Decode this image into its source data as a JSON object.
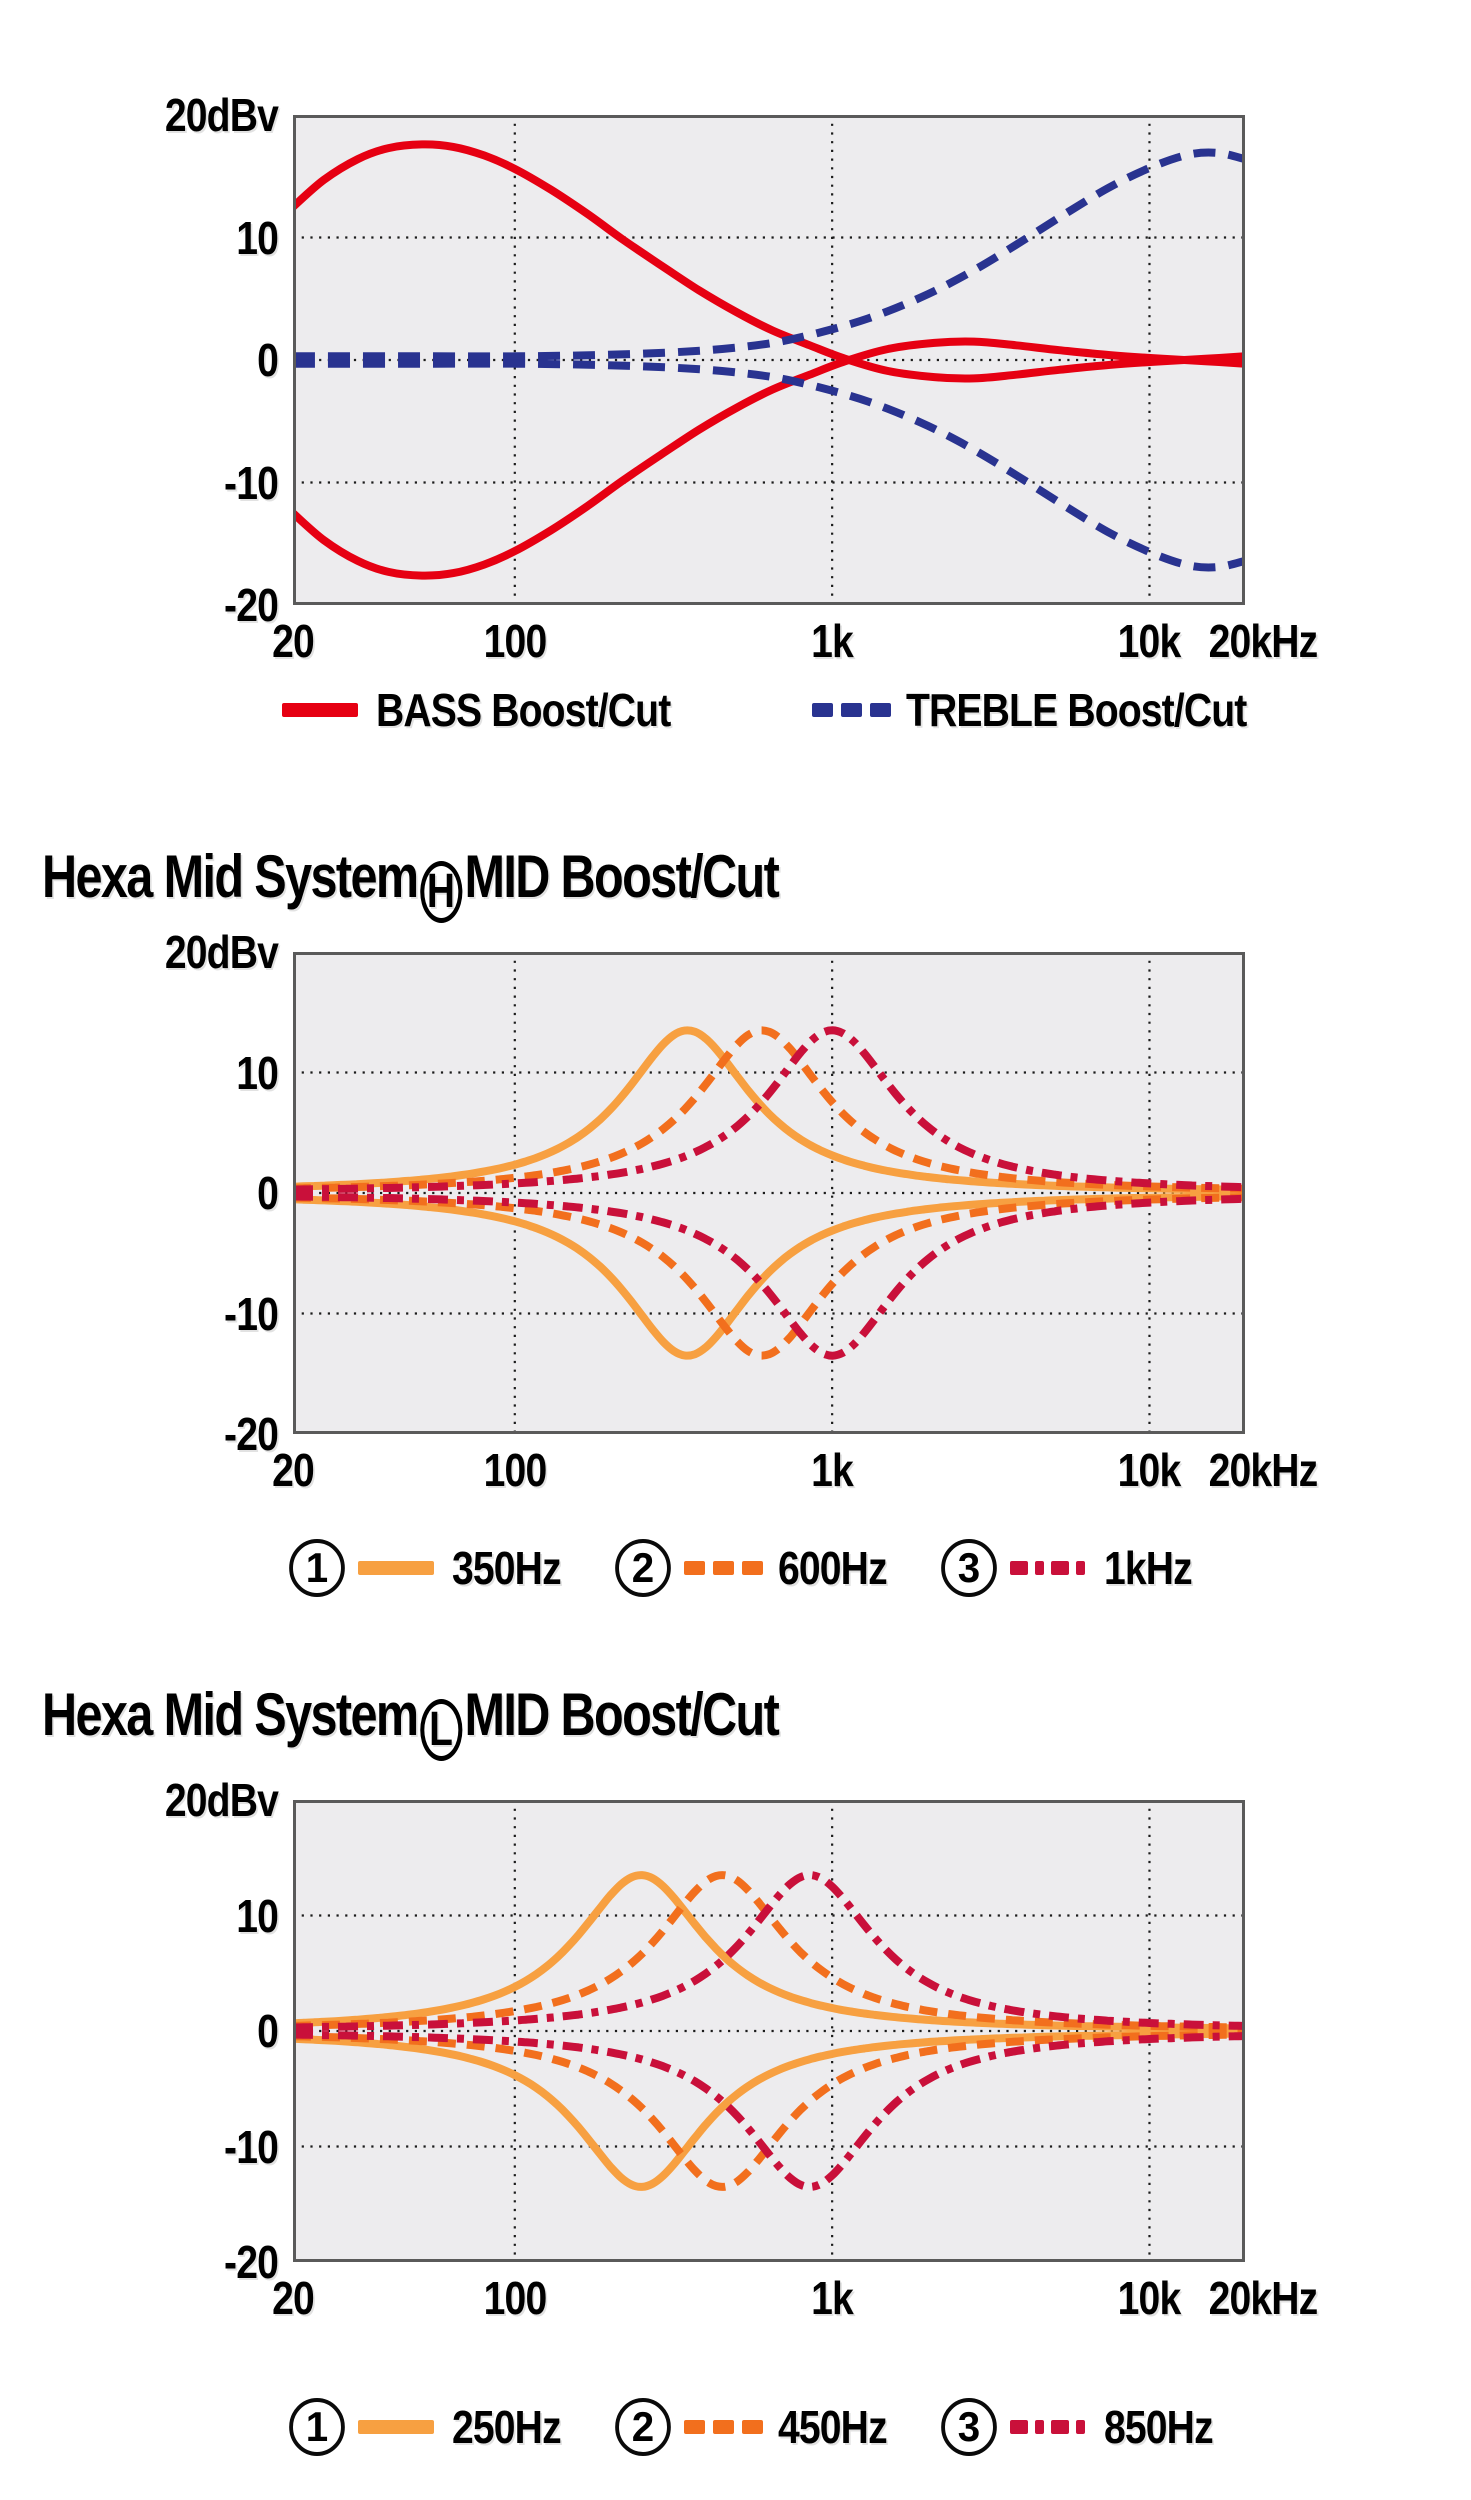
{
  "y_axis": {
    "unit_top_label": "20dBv",
    "ticks": [
      {
        "v": 10,
        "label": "10"
      },
      {
        "v": 0,
        "label": "0"
      },
      {
        "v": -10,
        "label": "-10"
      },
      {
        "v": -20,
        "label": "-20"
      }
    ],
    "min": -20,
    "max": 20,
    "grid_at": [
      10,
      0,
      -10
    ]
  },
  "x_axis": {
    "scale": "log",
    "min_hz": 20,
    "max_hz": 20000,
    "ticks": [
      {
        "f": 20,
        "label": "20"
      },
      {
        "f": 100,
        "label": "100"
      },
      {
        "f": 1000,
        "label": "1k"
      },
      {
        "f": 10000,
        "label": "10k"
      },
      {
        "f": 20000,
        "label": "20kHz"
      }
    ],
    "grid_at": [
      100,
      1000,
      10000
    ]
  },
  "style": {
    "plot_bg": "#edecee",
    "plot_border": "#5a5a5a",
    "grid_color": "#1b1b1b",
    "red": "#e60012",
    "navy": "#293390",
    "orange_light": "#f7a041",
    "orange_dark": "#f26f1d",
    "crimson": "#c9103a"
  },
  "chart_data": [
    {
      "type": "line",
      "title": "",
      "grid": true,
      "legend_position": "bottom",
      "ylim": [
        -20,
        20
      ],
      "series": [
        {
          "name": "BASS Boost/Cut",
          "color": "#e60012",
          "style": "solid",
          "mirror": true,
          "curve_type": "points",
          "points_hz_db": [
            [
              20,
              12.5
            ],
            [
              25,
              14.7
            ],
            [
              32,
              16.4
            ],
            [
              40,
              17.3
            ],
            [
              51,
              17.6
            ],
            [
              64,
              17.4
            ],
            [
              80,
              16.7
            ],
            [
              100,
              15.6
            ],
            [
              130,
              13.9
            ],
            [
              170,
              11.9
            ],
            [
              220,
              9.8
            ],
            [
              290,
              7.7
            ],
            [
              380,
              5.7
            ],
            [
              500,
              3.9
            ],
            [
              650,
              2.4
            ],
            [
              850,
              1.2
            ],
            [
              1100,
              0.1
            ],
            [
              1500,
              -0.9
            ],
            [
              2100,
              -1.4
            ],
            [
              2800,
              -1.5
            ],
            [
              3800,
              -1.2
            ],
            [
              5200,
              -0.8
            ],
            [
              7500,
              -0.4
            ],
            [
              11000,
              -0.1
            ],
            [
              15000,
              0.1
            ],
            [
              20000,
              0.3
            ]
          ]
        },
        {
          "name": "TREBLE Boost/Cut",
          "color": "#293390",
          "style": "dashed",
          "mirror": true,
          "curve_type": "points",
          "points_hz_db": [
            [
              20,
              0.3
            ],
            [
              50,
              0.3
            ],
            [
              100,
              0.3
            ],
            [
              180,
              0.4
            ],
            [
              300,
              0.6
            ],
            [
              450,
              0.9
            ],
            [
              650,
              1.4
            ],
            [
              900,
              2.2
            ],
            [
              1300,
              3.4
            ],
            [
              1900,
              5.1
            ],
            [
              2700,
              7.1
            ],
            [
              3800,
              9.4
            ],
            [
              5400,
              11.9
            ],
            [
              7600,
              14.2
            ],
            [
              10500,
              15.9
            ],
            [
              13500,
              16.8
            ],
            [
              16500,
              16.9
            ],
            [
              20000,
              16.4
            ]
          ]
        }
      ],
      "legend": [
        {
          "label": "BASS Boost/Cut",
          "style": "solid",
          "color": "#e60012"
        },
        {
          "label": "TREBLE Boost/Cut",
          "style": "dashed",
          "color": "#293390"
        }
      ]
    },
    {
      "type": "line",
      "title": {
        "prefix": "Hexa Mid System",
        "badge": "H",
        "suffix": "MID Boost/Cut"
      },
      "grid": true,
      "legend_position": "bottom",
      "ylim": [
        -20,
        20
      ],
      "series": [
        {
          "name": "350Hz",
          "num": "1",
          "color": "#f7a041",
          "style": "solid",
          "mirror": true,
          "curve_type": "bell",
          "fc_hz": 350,
          "peak_db": 13.5,
          "width_decades": 0.25
        },
        {
          "name": "600Hz",
          "num": "2",
          "color": "#f26f1d",
          "style": "dashed",
          "mirror": true,
          "curve_type": "bell",
          "fc_hz": 600,
          "peak_db": 13.5,
          "width_decades": 0.25
        },
        {
          "name": "1kHz",
          "num": "3",
          "color": "#c9103a",
          "style": "dashdot",
          "mirror": true,
          "curve_type": "bell",
          "fc_hz": 1000,
          "peak_db": 13.5,
          "width_decades": 0.25
        }
      ],
      "legend": [
        {
          "num": "1",
          "label": "350Hz",
          "style": "solid",
          "color": "#f7a041"
        },
        {
          "num": "2",
          "label": "600Hz",
          "style": "dashed",
          "color": "#f26f1d"
        },
        {
          "num": "3",
          "label": "1kHz",
          "style": "dashdot",
          "color": "#c9103a"
        }
      ]
    },
    {
      "type": "line",
      "title": {
        "prefix": "Hexa Mid System",
        "badge": "L",
        "suffix": "MID Boost/Cut"
      },
      "grid": true,
      "legend_position": "bottom",
      "ylim": [
        -20,
        20
      ],
      "series": [
        {
          "name": "250Hz",
          "num": "1",
          "color": "#f7a041",
          "style": "solid",
          "mirror": true,
          "curve_type": "bell",
          "fc_hz": 250,
          "peak_db": 13.5,
          "width_decades": 0.25
        },
        {
          "name": "450Hz",
          "num": "2",
          "color": "#f26f1d",
          "style": "dashed",
          "mirror": true,
          "curve_type": "bell",
          "fc_hz": 450,
          "peak_db": 13.5,
          "width_decades": 0.25
        },
        {
          "name": "850Hz",
          "num": "3",
          "color": "#c9103a",
          "style": "dashdot",
          "mirror": true,
          "curve_type": "bell",
          "fc_hz": 850,
          "peak_db": 13.5,
          "width_decades": 0.25
        }
      ],
      "legend": [
        {
          "num": "1",
          "label": "250Hz",
          "style": "solid",
          "color": "#f7a041"
        },
        {
          "num": "2",
          "label": "450Hz",
          "style": "dashed",
          "color": "#f26f1d"
        },
        {
          "num": "3",
          "label": "850Hz",
          "style": "dashdot",
          "color": "#c9103a"
        }
      ]
    }
  ]
}
